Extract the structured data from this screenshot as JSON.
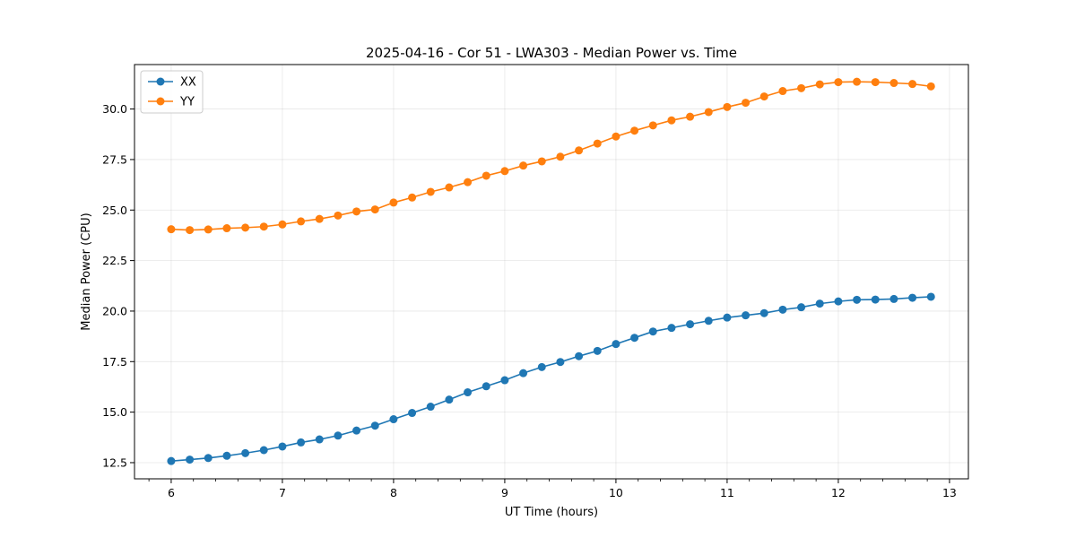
{
  "chart_data": {
    "type": "line",
    "title": "2025-04-16 - Cor 51 - LWA303 - Median Power vs. Time",
    "xlabel": "UT Time (hours)",
    "ylabel": "Median Power (CPU)",
    "xlim": [
      5.67,
      13.17
    ],
    "ylim": [
      11.7,
      32.2
    ],
    "xticks": [
      6,
      7,
      8,
      9,
      10,
      11,
      12,
      13
    ],
    "yticks": [
      12.5,
      15.0,
      17.5,
      20.0,
      22.5,
      25.0,
      27.5,
      30.0
    ],
    "minor_xtick_step": 0.2,
    "grid": true,
    "legend_position": "upper-left",
    "x": [
      6.0,
      6.1667,
      6.3333,
      6.5,
      6.6667,
      6.8333,
      7.0,
      7.1667,
      7.3333,
      7.5,
      7.6667,
      7.8333,
      8.0,
      8.1667,
      8.3333,
      8.5,
      8.6667,
      8.8333,
      9.0,
      9.1667,
      9.3333,
      9.5,
      9.6667,
      9.8333,
      10.0,
      10.1667,
      10.3333,
      10.5,
      10.6667,
      10.8333,
      11.0,
      11.1667,
      11.3333,
      11.5,
      11.6667,
      11.8333,
      12.0,
      12.1667,
      12.3333,
      12.5,
      12.6667,
      12.8333
    ],
    "series": [
      {
        "name": "XX",
        "color": "#1f77b4",
        "values": [
          12.58,
          12.65,
          12.73,
          12.84,
          12.97,
          13.12,
          13.3,
          13.5,
          13.65,
          13.84,
          14.09,
          14.33,
          14.65,
          14.96,
          15.27,
          15.62,
          15.98,
          16.28,
          16.58,
          16.93,
          17.23,
          17.48,
          17.77,
          18.03,
          18.37,
          18.68,
          18.99,
          19.17,
          19.35,
          19.52,
          19.68,
          19.79,
          19.9,
          20.07,
          20.19,
          20.37,
          20.48,
          20.56,
          20.57,
          20.6,
          20.66,
          20.71
        ]
      },
      {
        "name": "YY",
        "color": "#ff7f0e",
        "values": [
          24.05,
          24.01,
          24.04,
          24.1,
          24.13,
          24.18,
          24.29,
          24.44,
          24.56,
          24.73,
          24.93,
          25.03,
          25.37,
          25.62,
          25.9,
          26.12,
          26.38,
          26.7,
          26.93,
          27.2,
          27.41,
          27.64,
          27.95,
          28.29,
          28.64,
          28.93,
          29.19,
          29.44,
          29.62,
          29.85,
          30.1,
          30.31,
          30.62,
          30.89,
          31.03,
          31.22,
          31.33,
          31.35,
          31.33,
          31.29,
          31.24,
          31.12
        ]
      }
    ]
  }
}
